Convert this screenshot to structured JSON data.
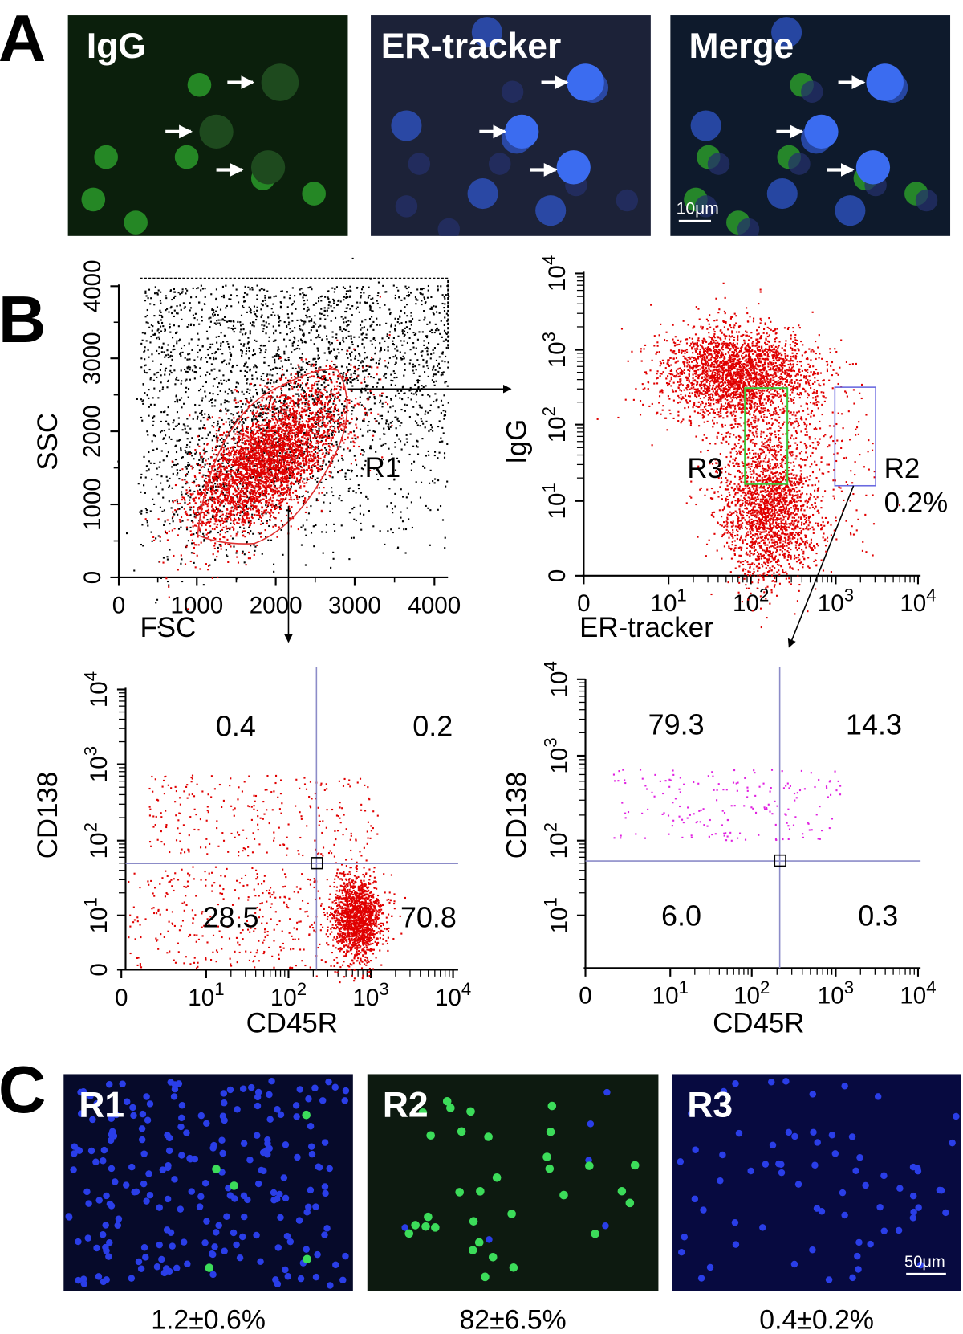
{
  "panel_a": {
    "label": "A",
    "images": [
      {
        "label": "IgG"
      },
      {
        "label": "ER-tracker"
      },
      {
        "label": "Merge",
        "scale_bar": "10μm"
      }
    ]
  },
  "panel_b": {
    "label": "B",
    "plots": [
      {
        "x_label": "FSC",
        "y_label": "SSC",
        "x_ticks": [
          "0",
          "1000",
          "2000",
          "3000",
          "4000"
        ],
        "y_ticks": [
          "0",
          "1000",
          "2000",
          "3000",
          "4000"
        ],
        "gates": [
          "R1"
        ]
      },
      {
        "x_label": "ER-tracker",
        "y_label": "IgG",
        "x_ticks": [
          "0",
          {
            "base": "10",
            "exp": "1"
          },
          {
            "base": "10",
            "exp": "2"
          },
          {
            "base": "10",
            "exp": "3"
          },
          {
            "base": "10",
            "exp": "4"
          }
        ],
        "y_ticks": [
          "0",
          {
            "base": "10",
            "exp": "1"
          },
          {
            "base": "10",
            "exp": "2"
          },
          {
            "base": "10",
            "exp": "3"
          },
          {
            "base": "10",
            "exp": "4"
          }
        ],
        "gates": [
          "R3",
          "R2"
        ],
        "gate_percent": "0.2%"
      },
      {
        "x_label": "CD45R",
        "y_label": "CD138",
        "x_ticks": [
          "0",
          {
            "base": "10",
            "exp": "1"
          },
          {
            "base": "10",
            "exp": "2"
          },
          {
            "base": "10",
            "exp": "3"
          },
          {
            "base": "10",
            "exp": "4"
          }
        ],
        "y_ticks": [
          "0",
          {
            "base": "10",
            "exp": "1"
          },
          {
            "base": "10",
            "exp": "2"
          },
          {
            "base": "10",
            "exp": "3"
          },
          {
            "base": "10",
            "exp": "4"
          }
        ],
        "quadrants": [
          "0.4",
          "0.2",
          "28.5",
          "70.8"
        ]
      },
      {
        "x_label": "CD45R",
        "y_label": "CD138",
        "x_ticks": [
          "0",
          {
            "base": "10",
            "exp": "1"
          },
          {
            "base": "10",
            "exp": "2"
          },
          {
            "base": "10",
            "exp": "3"
          },
          {
            "base": "10",
            "exp": "4"
          }
        ],
        "y_ticks": [
          {
            "base": "10",
            "exp": "1"
          },
          {
            "base": "10",
            "exp": "2"
          },
          {
            "base": "10",
            "exp": "3"
          },
          {
            "base": "10",
            "exp": "4"
          }
        ],
        "quadrants": [
          "79.3",
          "14.3",
          "6.0",
          "0.3"
        ]
      }
    ]
  },
  "panel_c": {
    "label": "C",
    "images": [
      {
        "label": "R1",
        "caption": "1.2±0.6%"
      },
      {
        "label": "R2",
        "caption": "82±6.5%"
      },
      {
        "label": "R3",
        "caption": "0.4±0.2%",
        "scale_bar": "50μm"
      }
    ]
  }
}
